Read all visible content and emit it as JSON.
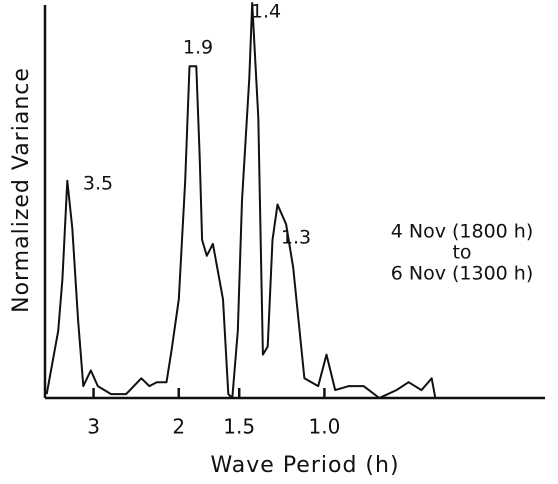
{
  "chart_data": {
    "type": "line",
    "xlabel": "Wave Period (h)",
    "ylabel": "Normalized Variance",
    "xscale": "log",
    "xlim": [
      3.78,
      0.35
    ],
    "xticks": [
      3,
      2,
      1.5,
      {
        "value": 1,
        "label": "1.0"
      }
    ],
    "ylim": [
      0,
      1
    ],
    "color": "#111111",
    "x": [
      3.75,
      3.55,
      3.48,
      3.4,
      3.32,
      3.23,
      3.15,
      3.04,
      2.94,
      2.76,
      2.57,
      2.39,
      2.3,
      2.22,
      2.12,
      2.07,
      2.0,
      1.94,
      1.9,
      1.84,
      1.81,
      1.79,
      1.75,
      1.7,
      1.62,
      1.58,
      1.55,
      1.51,
      1.48,
      1.43,
      1.41,
      1.37,
      1.34,
      1.31,
      1.28,
      1.25,
      1.2,
      1.16,
      1.1,
      1.03,
      0.99,
      0.95,
      0.89,
      0.83,
      0.77,
      0.71,
      0.67,
      0.63,
      0.6,
      0.59
    ],
    "values": [
      0.01,
      0.17,
      0.3,
      0.55,
      0.43,
      0.2,
      0.03,
      0.07,
      0.03,
      0.01,
      0.01,
      0.05,
      0.03,
      0.04,
      0.04,
      0.12,
      0.25,
      0.55,
      0.84,
      0.84,
      0.61,
      0.4,
      0.36,
      0.39,
      0.25,
      0.01,
      0,
      0.17,
      0.5,
      0.81,
      1.0,
      0.71,
      0.11,
      0.13,
      0.4,
      0.49,
      0.44,
      0.33,
      0.05,
      0.03,
      0.11,
      0.02,
      0.03,
      0.03,
      0,
      0.02,
      0.04,
      0.02,
      0.05,
      0
    ],
    "annotations": [
      "3.5",
      "1.9",
      "1.4",
      "1.3"
    ],
    "legend_text": [
      "4 Nov (1800 h)",
      "to",
      "6 Nov (1300 h)"
    ]
  }
}
